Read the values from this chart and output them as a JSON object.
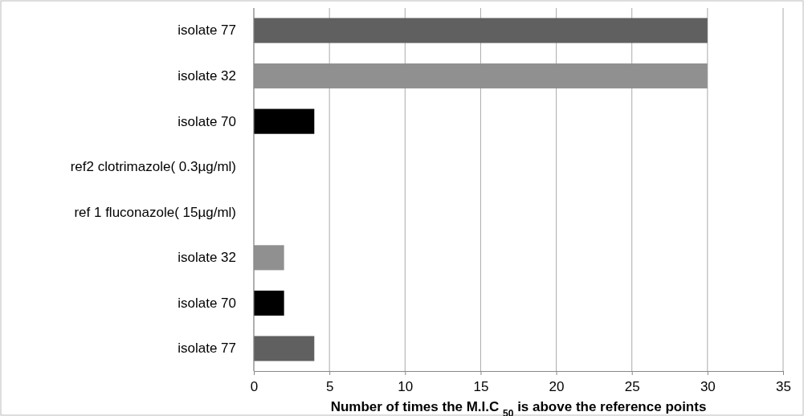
{
  "chart_data": {
    "type": "bar",
    "orientation": "horizontal",
    "xlabel": "Number of times the M.I.C $_{50}$ is above the reference points",
    "categories": [
      "isolate 77",
      "isolate 32",
      "isolate 70",
      "ref2 clotrimazole( 0.3µg/ml)",
      "ref 1 fluconazole( 15µg/ml)",
      "isolate 32",
      "isolate 70",
      "isolate 77"
    ],
    "values": [
      30,
      30,
      4,
      0,
      0,
      2,
      2,
      4
    ],
    "colors": [
      "#606060",
      "#909090",
      "#000000",
      "#000000",
      "#000000",
      "#909090",
      "#000000",
      "#606060"
    ],
    "xlim": [
      0,
      35
    ],
    "xticks": [
      0,
      5,
      10,
      15,
      20,
      25,
      30,
      35
    ],
    "grid": "x"
  }
}
